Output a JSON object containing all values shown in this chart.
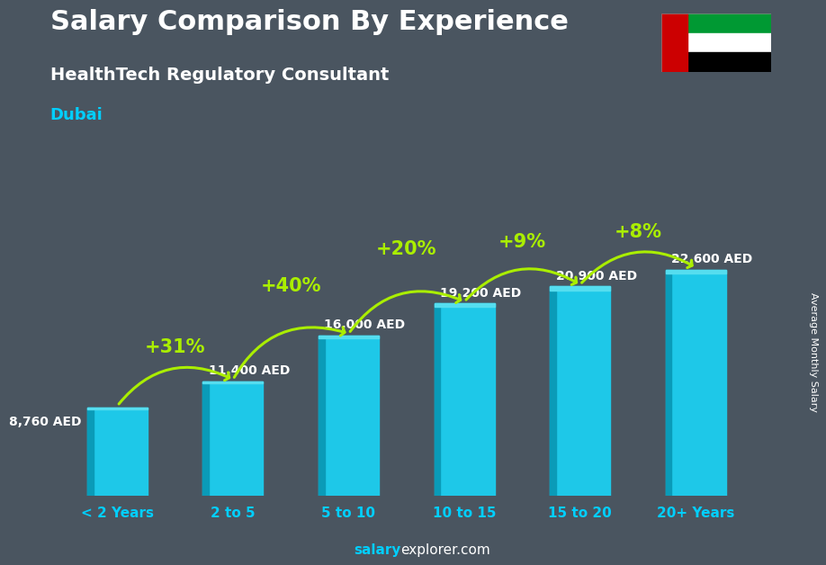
{
  "title_line1": "Salary Comparison By Experience",
  "title_line2": "HealthTech Regulatory Consultant",
  "title_line3": "Dubai",
  "categories": [
    "< 2 Years",
    "2 to 5",
    "5 to 10",
    "10 to 15",
    "15 to 20",
    "20+ Years"
  ],
  "values": [
    8760,
    11400,
    16000,
    19200,
    20900,
    22600
  ],
  "value_labels": [
    "8,760 AED",
    "11,400 AED",
    "16,000 AED",
    "19,200 AED",
    "20,900 AED",
    "22,600 AED"
  ],
  "pct_labels": [
    "+31%",
    "+40%",
    "+20%",
    "+9%",
    "+8%"
  ],
  "bar_color_face": "#1EC8E8",
  "bar_color_left": "#0A9BB8",
  "bar_color_top": "#55DDEF",
  "bg_color": "#4A5560",
  "title1_color": "#FFFFFF",
  "title2_color": "#FFFFFF",
  "title3_color": "#00CFFF",
  "val_label_color": "#FFFFFF",
  "pct_color": "#AAEE00",
  "xticklabel_color": "#00CFFF",
  "ylabel_text": "Average Monthly Salary",
  "ylabel_color": "#FFFFFF",
  "footer_salary_color": "#00CFFF",
  "footer_explorer_color": "#FFFFFF",
  "ylim": [
    0,
    30000
  ],
  "arrow_color": "#AAEE00",
  "pct_fontsize": 15,
  "val_fontsize": 10,
  "title1_fontsize": 22,
  "title2_fontsize": 14,
  "title3_fontsize": 13,
  "xtick_fontsize": 11,
  "footer_fontsize": 11
}
